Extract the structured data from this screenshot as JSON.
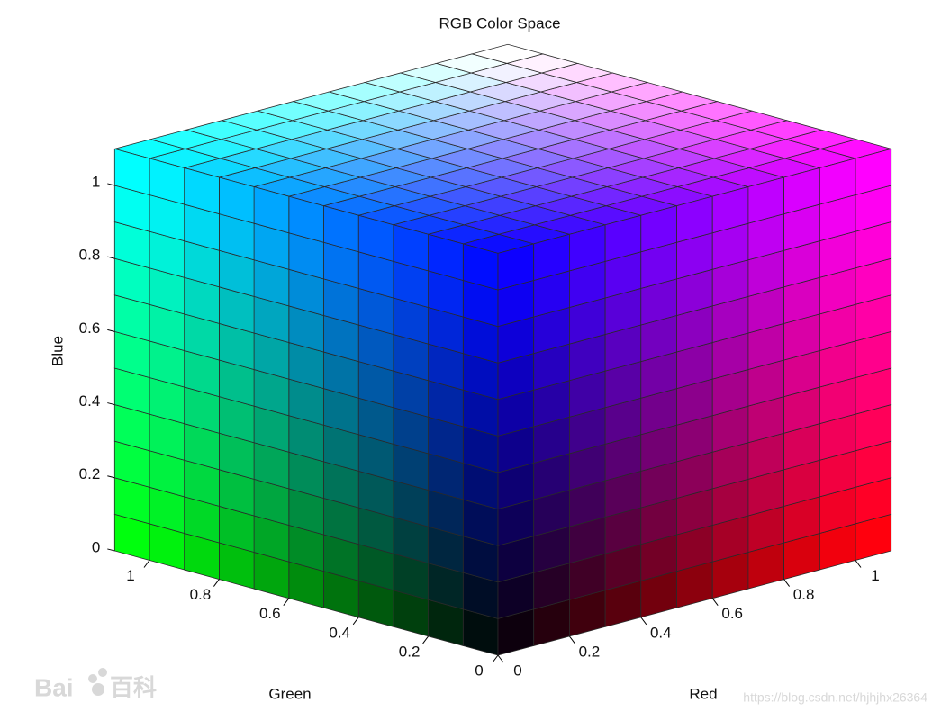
{
  "chart_data": {
    "type": "rgb-cube",
    "title": "RGB Color Space",
    "axes": {
      "red": {
        "label": "Red",
        "lim": [
          0,
          1.1
        ],
        "ticks": [
          0,
          0.2,
          0.4,
          0.6,
          0.8,
          1
        ]
      },
      "green": {
        "label": "Green",
        "lim": [
          0,
          1.1
        ],
        "ticks": [
          0,
          0.2,
          0.4,
          0.6,
          0.8,
          1
        ]
      },
      "blue": {
        "label": "Blue",
        "lim": [
          0,
          1.1
        ],
        "ticks": [
          0,
          0.2,
          0.4,
          0.6,
          0.8,
          1
        ]
      }
    },
    "divisions": 11,
    "watermarks": [
      "Bai",
      "百科",
      "https://blog.csdn.net/hjhjhx26364"
    ]
  }
}
